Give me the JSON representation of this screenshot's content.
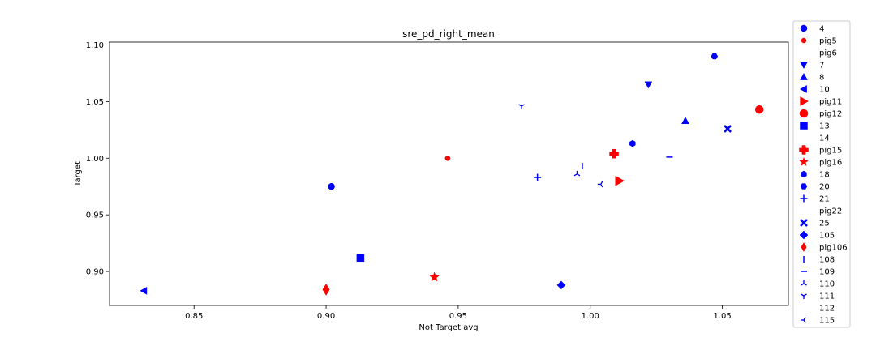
{
  "chart_data": {
    "type": "scatter",
    "title": "sre_pd_right_mean",
    "xlabel": "Not Target avg",
    "ylabel": "Target",
    "xlim": [
      0.818,
      1.075
    ],
    "ylim": [
      0.87,
      1.1025
    ],
    "xticks": [
      0.85,
      0.9,
      0.95,
      1.0,
      1.05
    ],
    "xtick_labels": [
      "0.85",
      "0.90",
      "0.95",
      "1.00",
      "1.05"
    ],
    "yticks": [
      0.9,
      0.95,
      1.0,
      1.05,
      1.1
    ],
    "ytick_labels": [
      "0.90",
      "0.95",
      "1.00",
      "1.05",
      "1.10"
    ],
    "grid": false,
    "legend_position": "outside-right",
    "series": [
      {
        "name": "4",
        "marker": "circle",
        "color": "#0000ff",
        "size": 4,
        "points": [
          [
            0.902,
            0.975
          ]
        ]
      },
      {
        "name": "pig5",
        "marker": "circle",
        "color": "#ff0000",
        "size": 3,
        "points": [
          [
            0.946,
            1.0
          ]
        ]
      },
      {
        "name": "pig6",
        "marker": "none",
        "color": "#ff0000",
        "size": 0,
        "points": []
      },
      {
        "name": "7",
        "marker": "triangle-down",
        "color": "#0000ff",
        "size": 4.5,
        "points": [
          [
            1.022,
            1.065
          ]
        ]
      },
      {
        "name": "8",
        "marker": "triangle-up",
        "color": "#0000ff",
        "size": 4.5,
        "points": [
          [
            1.036,
            1.033
          ]
        ]
      },
      {
        "name": "10",
        "marker": "triangle-left",
        "color": "#0000ff",
        "size": 4.5,
        "points": [
          [
            0.831,
            0.883
          ]
        ]
      },
      {
        "name": "pig11",
        "marker": "triangle-right",
        "color": "#ff0000",
        "size": 6,
        "points": [
          [
            1.011,
            0.98
          ]
        ]
      },
      {
        "name": "pig12",
        "marker": "circle",
        "color": "#ff0000",
        "size": 5,
        "points": [
          [
            1.064,
            1.043
          ]
        ]
      },
      {
        "name": "13",
        "marker": "square",
        "color": "#0000ff",
        "size": 4.5,
        "points": [
          [
            0.913,
            0.912
          ]
        ]
      },
      {
        "name": "14",
        "marker": "none",
        "color": "#0000ff",
        "size": 0,
        "points": []
      },
      {
        "name": "pig15",
        "marker": "plus-filled",
        "color": "#ff0000",
        "size": 5.5,
        "points": [
          [
            1.009,
            1.004
          ]
        ]
      },
      {
        "name": "pig16",
        "marker": "star",
        "color": "#ff0000",
        "size": 6,
        "points": [
          [
            0.941,
            0.895
          ]
        ]
      },
      {
        "name": "18",
        "marker": "hexagon",
        "color": "#0000ff",
        "size": 4,
        "points": [
          [
            1.016,
            1.013
          ]
        ]
      },
      {
        "name": "20",
        "marker": "hexagon2",
        "color": "#0000ff",
        "size": 4,
        "points": [
          [
            1.047,
            1.09
          ]
        ]
      },
      {
        "name": "21",
        "marker": "plus",
        "color": "#0000ff",
        "size": 4.5,
        "points": [
          [
            0.98,
            0.983
          ]
        ]
      },
      {
        "name": "pig22",
        "marker": "none",
        "color": "#ff0000",
        "size": 0,
        "points": []
      },
      {
        "name": "25",
        "marker": "x-filled",
        "color": "#0000ff",
        "size": 4,
        "points": [
          [
            1.052,
            1.026
          ]
        ]
      },
      {
        "name": "105",
        "marker": "diamond",
        "color": "#0000ff",
        "size": 5,
        "points": [
          [
            0.989,
            0.888
          ]
        ]
      },
      {
        "name": "pig106",
        "marker": "thin-diamond",
        "color": "#ff0000",
        "size": 7,
        "points": [
          [
            0.9,
            0.884
          ]
        ]
      },
      {
        "name": "108",
        "marker": "vline",
        "color": "#0000ff",
        "size": 4,
        "points": [
          [
            0.997,
            0.993
          ]
        ]
      },
      {
        "name": "109",
        "marker": "hline",
        "color": "#0000ff",
        "size": 4,
        "points": [
          [
            1.03,
            1.001
          ]
        ]
      },
      {
        "name": "110",
        "marker": "tri-down",
        "color": "#0000ff",
        "size": 4,
        "points": [
          [
            0.995,
            0.986
          ]
        ]
      },
      {
        "name": "111",
        "marker": "tri-up",
        "color": "#0000ff",
        "size": 4,
        "points": [
          [
            0.974,
            1.046
          ]
        ]
      },
      {
        "name": "112",
        "marker": "none",
        "color": "#0000ff",
        "size": 0,
        "points": []
      },
      {
        "name": "115",
        "marker": "tri-right",
        "color": "#0000ff",
        "size": 4,
        "points": [
          [
            1.004,
            0.977
          ]
        ]
      }
    ]
  }
}
